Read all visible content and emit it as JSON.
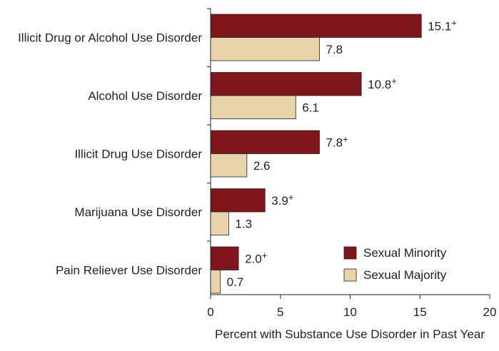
{
  "chart_data": {
    "type": "bar",
    "orientation": "horizontal",
    "categories": [
      "Illicit Drug or Alcohol Use Disorder",
      "Alcohol Use Disorder",
      "Illicit Drug Use Disorder",
      "Marijuana Use Disorder",
      "Pain Reliever Use Disorder"
    ],
    "series": [
      {
        "name": "Sexual Minority",
        "values": [
          15.1,
          10.8,
          7.8,
          3.9,
          2.0
        ],
        "labels": [
          "15.1",
          "10.8",
          "7.8",
          "3.9",
          "2.0"
        ],
        "label_marker": "+",
        "color": "#7f161c"
      },
      {
        "name": "Sexual Majority",
        "values": [
          7.8,
          6.1,
          2.6,
          1.3,
          0.7
        ],
        "labels": [
          "7.8",
          "6.1",
          "2.6",
          "1.3",
          "0.7"
        ],
        "label_marker": "",
        "color": "#e9d4aa"
      }
    ],
    "xlabel": "Percent with Substance Use Disorder in Past Year",
    "ylabel": "",
    "xlim": [
      0,
      20
    ],
    "xticks": [
      0,
      5,
      10,
      15,
      20
    ],
    "grid": false,
    "legend_position": "bottom-right"
  }
}
